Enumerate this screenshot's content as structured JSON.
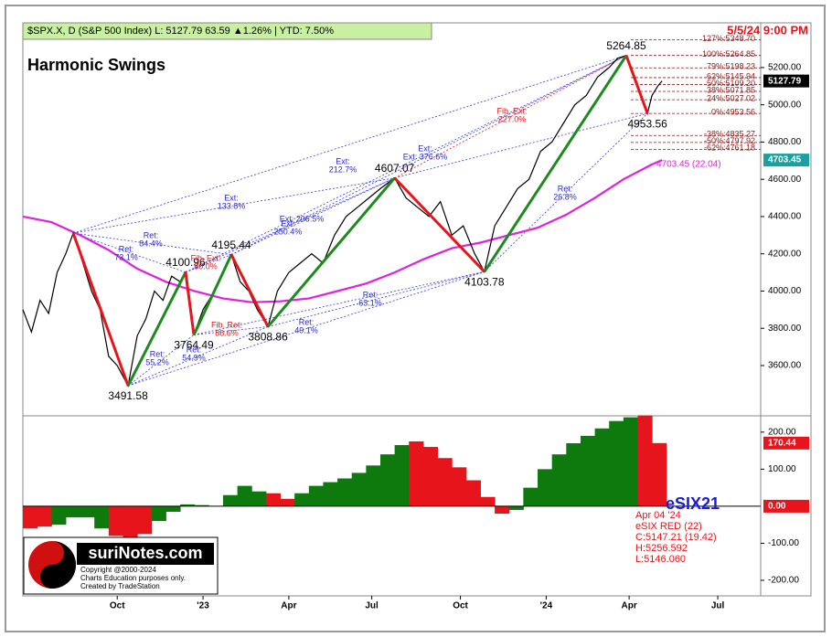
{
  "chart_data": {
    "type": "line",
    "header": "$SPX.X, D (S&P 500 Index)  L: 5127.79  63.59  ▲1.26%  |  YTD: 7.50%",
    "timestamp": "5/5/24 9:00 PM",
    "title": "Harmonic Swings",
    "xlim": [
      0,
      25.8
    ],
    "xticks": [
      {
        "value": 3.3,
        "label": "Oct"
      },
      {
        "value": 6.3,
        "label": "'23"
      },
      {
        "value": 9.3,
        "label": "Apr"
      },
      {
        "value": 12.2,
        "label": "Jul"
      },
      {
        "value": 15.3,
        "label": "Oct"
      },
      {
        "value": 18.3,
        "label": "'24"
      },
      {
        "value": 21.2,
        "label": "Apr"
      },
      {
        "value": 24.3,
        "label": "Jul"
      }
    ],
    "ylim": [
      3330,
      5440
    ],
    "yticks": [
      {
        "value": 3600,
        "label": "3600.00"
      },
      {
        "value": 3800,
        "label": "3800.00"
      },
      {
        "value": 4000,
        "label": "4000.00"
      },
      {
        "value": 4200,
        "label": "4200.00"
      },
      {
        "value": 4400,
        "label": "4400.00"
      },
      {
        "value": 4600,
        "label": "4600.00"
      },
      {
        "value": 4800,
        "label": "4800.00"
      },
      {
        "value": 5000,
        "label": "5000.00"
      },
      {
        "value": 5200,
        "label": "5200.00"
      }
    ],
    "series": [
      {
        "name": "$SPX.X",
        "color": "#000000",
        "last_label": "5127.79",
        "x": [
          0,
          0.3,
          0.6,
          0.9,
          1.2,
          1.5,
          1.76,
          2.1,
          2.4,
          2.7,
          3.0,
          3.3,
          3.68,
          4.0,
          4.3,
          4.6,
          4.9,
          5.2,
          5.5,
          5.69,
          5.98,
          6.3,
          6.7,
          7.0,
          7.29,
          7.6,
          7.9,
          8.2,
          8.57,
          8.9,
          9.3,
          9.7,
          10.1,
          10.5,
          10.9,
          11.3,
          11.7,
          12.1,
          12.5,
          13.0,
          13.4,
          13.8,
          14.2,
          14.6,
          15.0,
          15.4,
          15.8,
          16.14,
          16.5,
          16.9,
          17.3,
          17.7,
          18.1,
          18.5,
          18.9,
          19.3,
          19.7,
          20.1,
          20.5,
          20.8,
          21.1,
          21.4,
          21.84,
          22.0,
          22.2,
          22.35
        ],
        "values": [
          3900,
          3780,
          3950,
          3880,
          4100,
          4200,
          4311,
          4150,
          4000,
          3900,
          3650,
          3600,
          3491.58,
          3760,
          3850,
          4000,
          3950,
          4080,
          4050,
          4100.96,
          3764.49,
          3900,
          4000,
          4100,
          4195.44,
          4050,
          4000,
          3900,
          3808.86,
          4000,
          4100,
          4150,
          4200,
          4150,
          4300,
          4400,
          4450,
          4500,
          4550,
          4607.07,
          4500,
          4450,
          4400,
          4480,
          4300,
          4350,
          4200,
          4103.78,
          4350,
          4450,
          4550,
          4600,
          4750,
          4800,
          4900,
          5000,
          5050,
          5150,
          5200,
          5250,
          5264.85,
          5150,
          4953.56,
          5050,
          5100,
          5127.79
        ]
      },
      {
        "name": "MA",
        "color": "#e020e0",
        "last_label": "4703.45",
        "note": "4703.45 (22.04)",
        "x": [
          0,
          1,
          2,
          3,
          4,
          5,
          6,
          7,
          8,
          9,
          10,
          11,
          12,
          13,
          14,
          15,
          16,
          17,
          18,
          19,
          20,
          21,
          22,
          22.35
        ],
        "values": [
          4400,
          4370,
          4300,
          4220,
          4120,
          4050,
          4000,
          3960,
          3940,
          3945,
          3960,
          4000,
          4040,
          4100,
          4170,
          4230,
          4260,
          4300,
          4340,
          4410,
          4500,
          4600,
          4680,
          4703.45
        ]
      }
    ],
    "swings": {
      "up_color": "#1e8a1e",
      "down_color": "#e8141b",
      "x": [
        1.76,
        3.68,
        5.69,
        5.98,
        7.29,
        8.57,
        13.0,
        16.14,
        21.1,
        21.84
      ],
      "values": [
        4311,
        3491.58,
        4100.96,
        3764.49,
        4195.44,
        3808.86,
        4607.07,
        4103.78,
        5264.85,
        4953.56
      ],
      "value_labels": [
        null,
        "3491.58",
        "4100.96",
        "3764.49",
        "4195.44",
        "3808.86",
        "4607.07",
        "4103.78",
        "5264.85",
        "4953.56"
      ]
    },
    "fib_levels": [
      {
        "label": "127%:5348.70",
        "value": 5348.7
      },
      {
        "label": "100%:5264.85",
        "value": 5264.85
      },
      {
        "label": "79%:5198.23",
        "value": 5198.23
      },
      {
        "label": "62%:5145.94",
        "value": 5145.94
      },
      {
        "label": "50%:5109.20",
        "value": 5109.2
      },
      {
        "label": "38%:5071.85",
        "value": 5071.85
      },
      {
        "label": "24%:5027.02",
        "value": 5027.02
      },
      {
        "label": "0%:4953.56",
        "value": 4953.56
      },
      {
        "label": "-38%:4835.27",
        "value": 4835.27
      },
      {
        "label": "-50%:4797.92",
        "value": 4797.92
      },
      {
        "label": "-62%:4761.18",
        "value": 4761.18
      }
    ],
    "annotations": [
      {
        "lines": [
          "Ext:",
          "212.7%"
        ],
        "color": "#2a2ad0"
      },
      {
        "lines": [
          "Ext:",
          "133.8%"
        ],
        "color": "#2a2ad0"
      },
      {
        "lines": [
          "Ext:",
          "250.4%"
        ],
        "color": "#2a2ad0"
      },
      {
        "lines": [
          "Ext: 206.5%"
        ],
        "color": "#2a2ad0"
      },
      {
        "lines": [
          "Ext:",
          "Ext: 376.6%"
        ],
        "color": "#2a2ad0"
      },
      {
        "lines": [
          "Fib. Ext:",
          "227.0%"
        ],
        "color": "#e8141b"
      },
      {
        "lines": [
          "Ret:",
          "84.4%"
        ],
        "color": "#2a2ad0"
      },
      {
        "lines": [
          "Ret:",
          "73.1%"
        ],
        "color": "#2a2ad0"
      },
      {
        "lines": [
          "Fib. Ext:",
          "80.0%"
        ],
        "color": "#e8141b"
      },
      {
        "lines": [
          "Fib. Ret:",
          "88.6%"
        ],
        "color": "#e8141b"
      },
      {
        "lines": [
          "Ret:",
          "55.2%"
        ],
        "color": "#2a2ad0"
      },
      {
        "lines": [
          "Ret:",
          "54.9%"
        ],
        "color": "#2a2ad0"
      },
      {
        "lines": [
          "Ret:",
          "49.1%"
        ],
        "color": "#2a2ad0"
      },
      {
        "lines": [
          "Ret:",
          "63.1%"
        ],
        "color": "#2a2ad0"
      },
      {
        "lines": [
          "Ret:",
          "26.8%"
        ],
        "color": "#2a2ad0"
      }
    ],
    "indicator": {
      "type": "area",
      "name": "eSIX21",
      "ylim": [
        -242,
        244
      ],
      "yticks": [
        {
          "value": 200,
          "label": "200.00"
        },
        {
          "value": 100,
          "label": "100.00"
        },
        {
          "value": -100,
          "label": "-100.00"
        },
        {
          "value": -200,
          "label": "-200.00"
        }
      ],
      "zero": {
        "value": 0,
        "label": "0.00"
      },
      "last_label": "170.44",
      "x": [
        0,
        0.5,
        1,
        1.5,
        2,
        2.5,
        3,
        3.5,
        4,
        4.5,
        5,
        5.5,
        6,
        6.5,
        7,
        7.5,
        8,
        8.5,
        9,
        9.5,
        10,
        10.5,
        11,
        11.5,
        12,
        12.5,
        13,
        13.5,
        14,
        14.5,
        15,
        15.5,
        16,
        16.5,
        17,
        17.5,
        18,
        18.5,
        19,
        19.5,
        20,
        20.5,
        21,
        21.5,
        22
      ],
      "values": [
        -60,
        -55,
        -50,
        -30,
        -30,
        -60,
        -80,
        -90,
        -75,
        -40,
        -15,
        5,
        3,
        0,
        30,
        55,
        40,
        35,
        20,
        35,
        55,
        65,
        75,
        90,
        110,
        140,
        165,
        175,
        160,
        130,
        105,
        70,
        25,
        -20,
        -10,
        50,
        100,
        140,
        170,
        190,
        210,
        230,
        240,
        245,
        170.44
      ],
      "colors": [
        "#e8141b",
        "#e8141b",
        "#0e7a0e",
        "#0e7a0e",
        "#0e7a0e",
        "#0e7a0e",
        "#e8141b",
        "#e8141b",
        "#e8141b",
        "#0e7a0e",
        "#0e7a0e",
        "#0e7a0e",
        "#0e7a0e",
        "#0e7a0e",
        "#0e7a0e",
        "#0e7a0e",
        "#0e7a0e",
        "#e8141b",
        "#e8141b",
        "#0e7a0e",
        "#0e7a0e",
        "#0e7a0e",
        "#0e7a0e",
        "#0e7a0e",
        "#0e7a0e",
        "#0e7a0e",
        "#0e7a0e",
        "#e8141b",
        "#e8141b",
        "#e8141b",
        "#e8141b",
        "#e8141b",
        "#e8141b",
        "#e8141b",
        "#0e7a0e",
        "#0e7a0e",
        "#0e7a0e",
        "#0e7a0e",
        "#0e7a0e",
        "#0e7a0e",
        "#0e7a0e",
        "#0e7a0e",
        "#0e7a0e",
        "#e8141b",
        "#e8141b"
      ],
      "info": [
        "Apr 04 '24",
        "eSIX RED (22)",
        "C:5147.21 (19.42)",
        "H:5256.592",
        "L:5146.060"
      ]
    },
    "logo": {
      "name": "suriNotes.com",
      "lines": [
        "Copyright @2000-2024",
        "Charts Education purposes only.",
        "Created by TradeStation"
      ]
    }
  }
}
